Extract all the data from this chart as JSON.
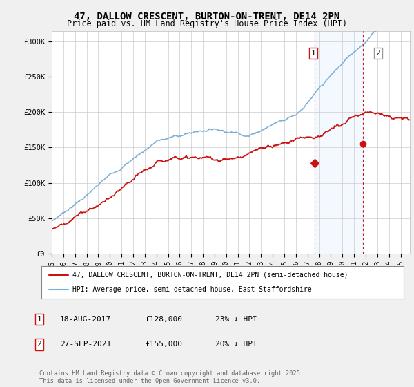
{
  "title": "47, DALLOW CRESCENT, BURTON-ON-TRENT, DE14 2PN",
  "subtitle": "Price paid vs. HM Land Registry's House Price Index (HPI)",
  "ylabel_ticks": [
    "£0",
    "£50K",
    "£100K",
    "£150K",
    "£200K",
    "£250K",
    "£300K"
  ],
  "ytick_values": [
    0,
    50000,
    100000,
    150000,
    200000,
    250000,
    300000
  ],
  "ylim": [
    0,
    315000
  ],
  "xlim_start": 1995.0,
  "xlim_end": 2025.8,
  "hpi_color": "#7aadd4",
  "price_color": "#cc1111",
  "marker1_date_x": 2017.63,
  "marker1_y": 128000,
  "marker2_date_x": 2021.75,
  "marker2_y": 155000,
  "vline_color": "#cc1111",
  "shade_color": "#ddeeff",
  "legend1_label": "47, DALLOW CRESCENT, BURTON-ON-TRENT, DE14 2PN (semi-detached house)",
  "legend2_label": "HPI: Average price, semi-detached house, East Staffordshire",
  "table_row1": [
    "1",
    "18-AUG-2017",
    "£128,000",
    "23% ↓ HPI"
  ],
  "table_row2": [
    "2",
    "27-SEP-2021",
    "£155,000",
    "20% ↓ HPI"
  ],
  "footnote": "Contains HM Land Registry data © Crown copyright and database right 2025.\nThis data is licensed under the Open Government Licence v3.0.",
  "background_color": "#f0f0f0",
  "plot_bg_color": "#ffffff",
  "grid_color": "#cccccc",
  "title_fontsize": 10,
  "subtitle_fontsize": 8.5,
  "tick_fontsize": 7.5
}
